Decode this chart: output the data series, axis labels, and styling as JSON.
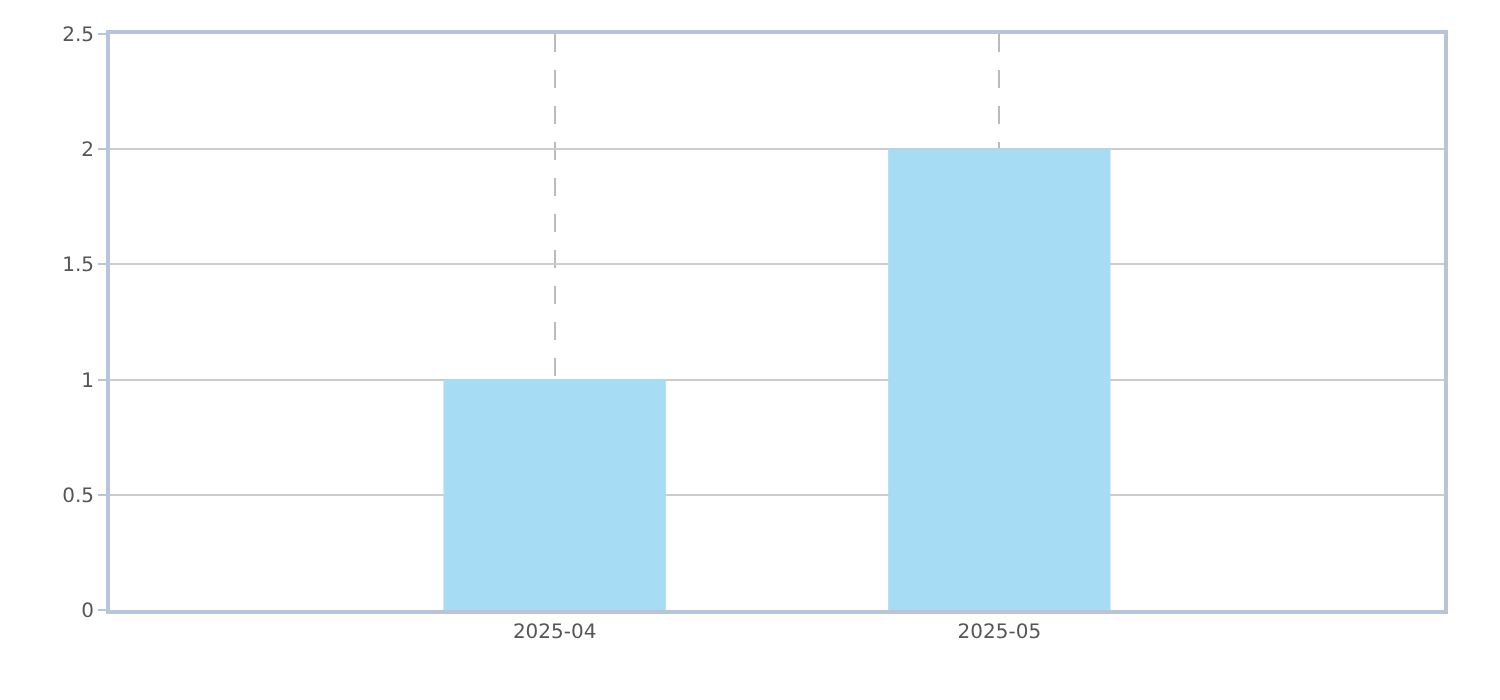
{
  "chart_data": {
    "type": "bar",
    "categories": [
      "2025-04",
      "2025-05"
    ],
    "values": [
      1,
      2
    ],
    "color": "#a6dcf4",
    "ylim": [
      0,
      2.5
    ],
    "yticks": [
      0,
      0.5,
      1,
      1.5,
      2,
      2.5
    ],
    "grid": true
  }
}
